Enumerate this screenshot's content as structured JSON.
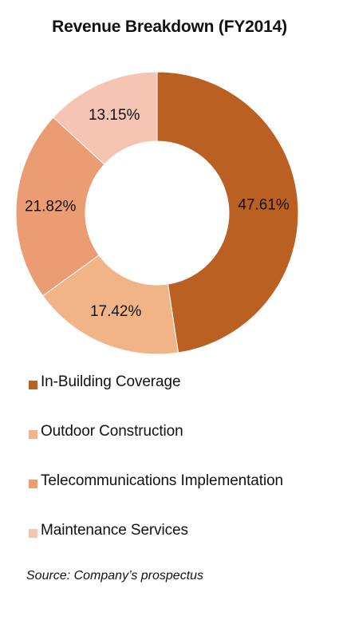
{
  "chart_data": {
    "type": "pie",
    "title": "Revenue Breakdown (FY2014)",
    "subtype": "donut",
    "start_angle_deg": 0,
    "direction": "clockwise",
    "slices": [
      {
        "label": "In-Building Coverage",
        "value": 47.61,
        "value_label": "47.61%",
        "color": "#b96022"
      },
      {
        "label": "Outdoor Construction",
        "value": 17.42,
        "value_label": "17.42%",
        "color": "#f1b487"
      },
      {
        "label": "Telecommunications Implementation",
        "value": 21.82,
        "value_label": "21.82%",
        "color": "#ec9c72"
      },
      {
        "label": "Maintenance Services",
        "value": 13.15,
        "value_label": "13.15%",
        "color": "#f5c4b2"
      }
    ],
    "legend_placement": "bottom",
    "source_note": "Source: Company’s prospectus"
  }
}
